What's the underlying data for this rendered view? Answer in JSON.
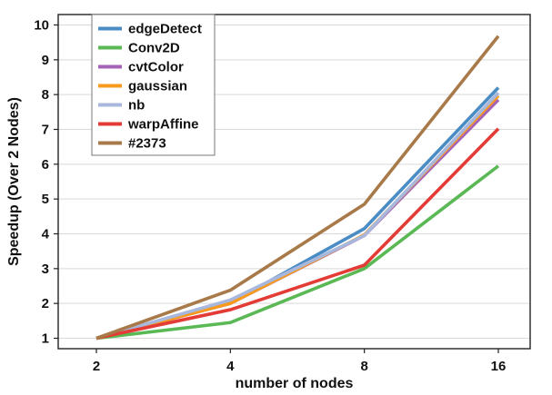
{
  "chart_data": {
    "type": "line",
    "title": "",
    "xlabel": "number of nodes",
    "ylabel": "Speedup (Over 2 Nodes)",
    "x_scale": "log2",
    "x": [
      2,
      4,
      8,
      16
    ],
    "x_tick_labels": [
      "2",
      "4",
      "8",
      "16"
    ],
    "ylim": [
      0.7,
      10.3
    ],
    "y_ticks": [
      1,
      2,
      3,
      4,
      5,
      6,
      7,
      8,
      9,
      10
    ],
    "y_tick_labels": [
      "1",
      "2",
      "3",
      "4",
      "5",
      "6",
      "7",
      "8",
      "9",
      "10"
    ],
    "grid": "horizontal",
    "legend_position": "top-left",
    "series": [
      {
        "name": "edgeDetect",
        "color": "#4a8cc4",
        "values": [
          1,
          2.02,
          4.15,
          8.2
        ]
      },
      {
        "name": "Conv2D",
        "color": "#5ab955",
        "values": [
          1,
          1.45,
          3.0,
          5.95
        ]
      },
      {
        "name": "cvtColor",
        "color": "#a463b6",
        "values": [
          1,
          2.0,
          3.95,
          7.85
        ]
      },
      {
        "name": "gaussian",
        "color": "#f79a1e",
        "values": [
          1,
          2.0,
          3.97,
          7.97
        ]
      },
      {
        "name": "nb",
        "color": "#a8b8dc",
        "values": [
          1,
          2.1,
          3.95,
          8.05
        ]
      },
      {
        "name": "warpAffine",
        "color": "#e33b35",
        "values": [
          1,
          1.82,
          3.1,
          7.02
        ]
      },
      {
        "name": "#2373",
        "color": "#a87a4a",
        "values": [
          1,
          2.38,
          4.85,
          9.68
        ]
      }
    ]
  }
}
